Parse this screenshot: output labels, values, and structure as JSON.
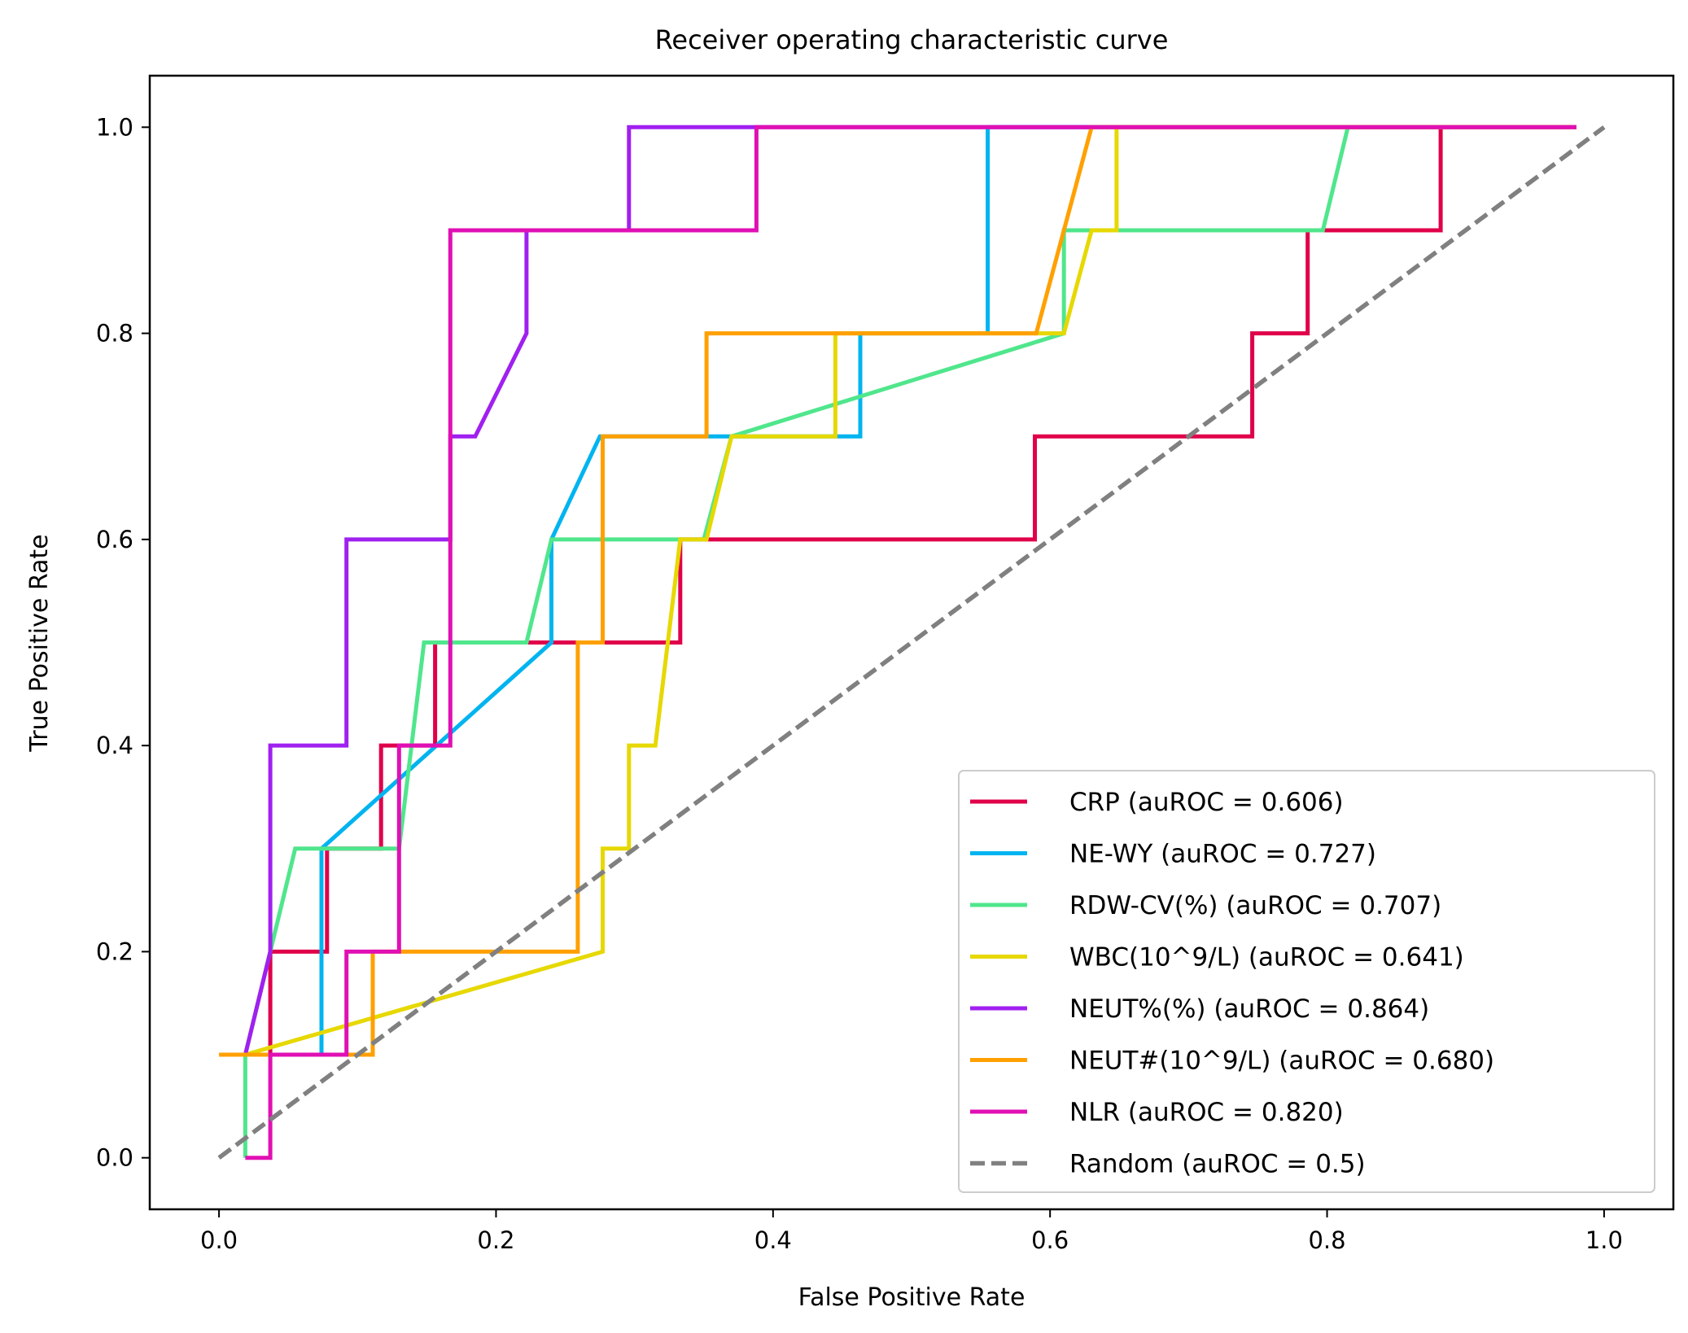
{
  "chart_data": {
    "type": "line",
    "title": "Receiver operating characteristic curve",
    "xlabel": "False Positive Rate",
    "ylabel": "True Positive Rate",
    "xlim": [
      -0.05,
      1.05
    ],
    "ylim": [
      -0.05,
      1.05
    ],
    "xticks": [
      0.0,
      0.2,
      0.4,
      0.6,
      0.8,
      1.0
    ],
    "xtick_labels": [
      "0.0",
      "0.2",
      "0.4",
      "0.6",
      "0.8",
      "1.0"
    ],
    "yticks": [
      0.0,
      0.2,
      0.4,
      0.6,
      0.8,
      1.0
    ],
    "ytick_labels": [
      "0.0",
      "0.2",
      "0.4",
      "0.6",
      "0.8",
      "1.0"
    ],
    "grid": false,
    "legend_position": "lower-right",
    "series": [
      {
        "name": "CRP (auROC = 0.606)",
        "color": "#e0004a",
        "dash": "solid",
        "x": [
          0.019,
          0.037,
          0.037,
          0.078,
          0.078,
          0.117,
          0.117,
          0.156,
          0.156,
          0.333,
          0.333,
          0.589,
          0.589,
          0.746,
          0.746,
          0.786,
          0.786,
          0.882,
          0.882,
          0.98
        ],
        "y": [
          0.1,
          0.1,
          0.2,
          0.2,
          0.3,
          0.3,
          0.4,
          0.4,
          0.5,
          0.5,
          0.6,
          0.6,
          0.7,
          0.7,
          0.8,
          0.8,
          0.9,
          0.9,
          1.0,
          1.0
        ]
      },
      {
        "name": "NE-WY (auROC = 0.727)",
        "color": "#00b4f0",
        "dash": "solid",
        "x": [
          0.019,
          0.074,
          0.074,
          0.24,
          0.24,
          0.275,
          0.463,
          0.463,
          0.555,
          0.555,
          0.98
        ],
        "y": [
          0.1,
          0.1,
          0.3,
          0.5,
          0.6,
          0.7,
          0.7,
          0.8,
          0.8,
          1.0,
          1.0
        ]
      },
      {
        "name": "RDW-CV(%) (auROC = 0.707)",
        "color": "#50e68c",
        "dash": "solid",
        "x": [
          0.019,
          0.019,
          0.055,
          0.13,
          0.148,
          0.222,
          0.24,
          0.35,
          0.37,
          0.61,
          0.61,
          0.797,
          0.815,
          0.98
        ],
        "y": [
          0.0,
          0.1,
          0.3,
          0.3,
          0.5,
          0.5,
          0.6,
          0.6,
          0.7,
          0.8,
          0.9,
          0.9,
          1.0,
          1.0
        ]
      },
      {
        "name": "WBC(10^9/L) (auROC = 0.641)",
        "color": "#e6d800",
        "dash": "solid",
        "x": [
          0.019,
          0.277,
          0.277,
          0.296,
          0.296,
          0.315,
          0.333,
          0.352,
          0.37,
          0.445,
          0.445,
          0.61,
          0.63,
          0.648,
          0.648,
          0.98
        ],
        "y": [
          0.1,
          0.2,
          0.3,
          0.3,
          0.4,
          0.4,
          0.6,
          0.6,
          0.7,
          0.7,
          0.8,
          0.8,
          0.9,
          0.9,
          1.0,
          1.0
        ]
      },
      {
        "name": "NEUT%(%) (auROC = 0.864)",
        "color": "#a020f0",
        "dash": "solid",
        "x": [
          0.019,
          0.037,
          0.037,
          0.092,
          0.092,
          0.167,
          0.167,
          0.185,
          0.222,
          0.222,
          0.296,
          0.296,
          0.98
        ],
        "y": [
          0.1,
          0.2,
          0.4,
          0.4,
          0.6,
          0.6,
          0.7,
          0.7,
          0.8,
          0.9,
          0.9,
          1.0,
          1.0
        ]
      },
      {
        "name": "NEUT#(10^9/L) (auROC = 0.680)",
        "color": "#ffa000",
        "dash": "solid",
        "x": [
          0.0,
          0.111,
          0.111,
          0.259,
          0.259,
          0.277,
          0.277,
          0.352,
          0.352,
          0.59,
          0.63,
          0.98
        ],
        "y": [
          0.1,
          0.1,
          0.2,
          0.2,
          0.5,
          0.5,
          0.7,
          0.7,
          0.8,
          0.8,
          1.0,
          1.0
        ]
      },
      {
        "name": "NLR (auROC = 0.820)",
        "color": "#e010b4",
        "dash": "solid",
        "x": [
          0.019,
          0.037,
          0.037,
          0.092,
          0.092,
          0.13,
          0.13,
          0.167,
          0.167,
          0.388,
          0.388,
          0.98
        ],
        "y": [
          0.0,
          0.0,
          0.1,
          0.1,
          0.2,
          0.2,
          0.4,
          0.4,
          0.9,
          0.9,
          1.0,
          1.0
        ]
      },
      {
        "name": "Random (auROC = 0.5)",
        "color": "#808080",
        "dash": "dashed",
        "x": [
          0.0,
          1.0
        ],
        "y": [
          0.0,
          1.0
        ]
      }
    ]
  }
}
